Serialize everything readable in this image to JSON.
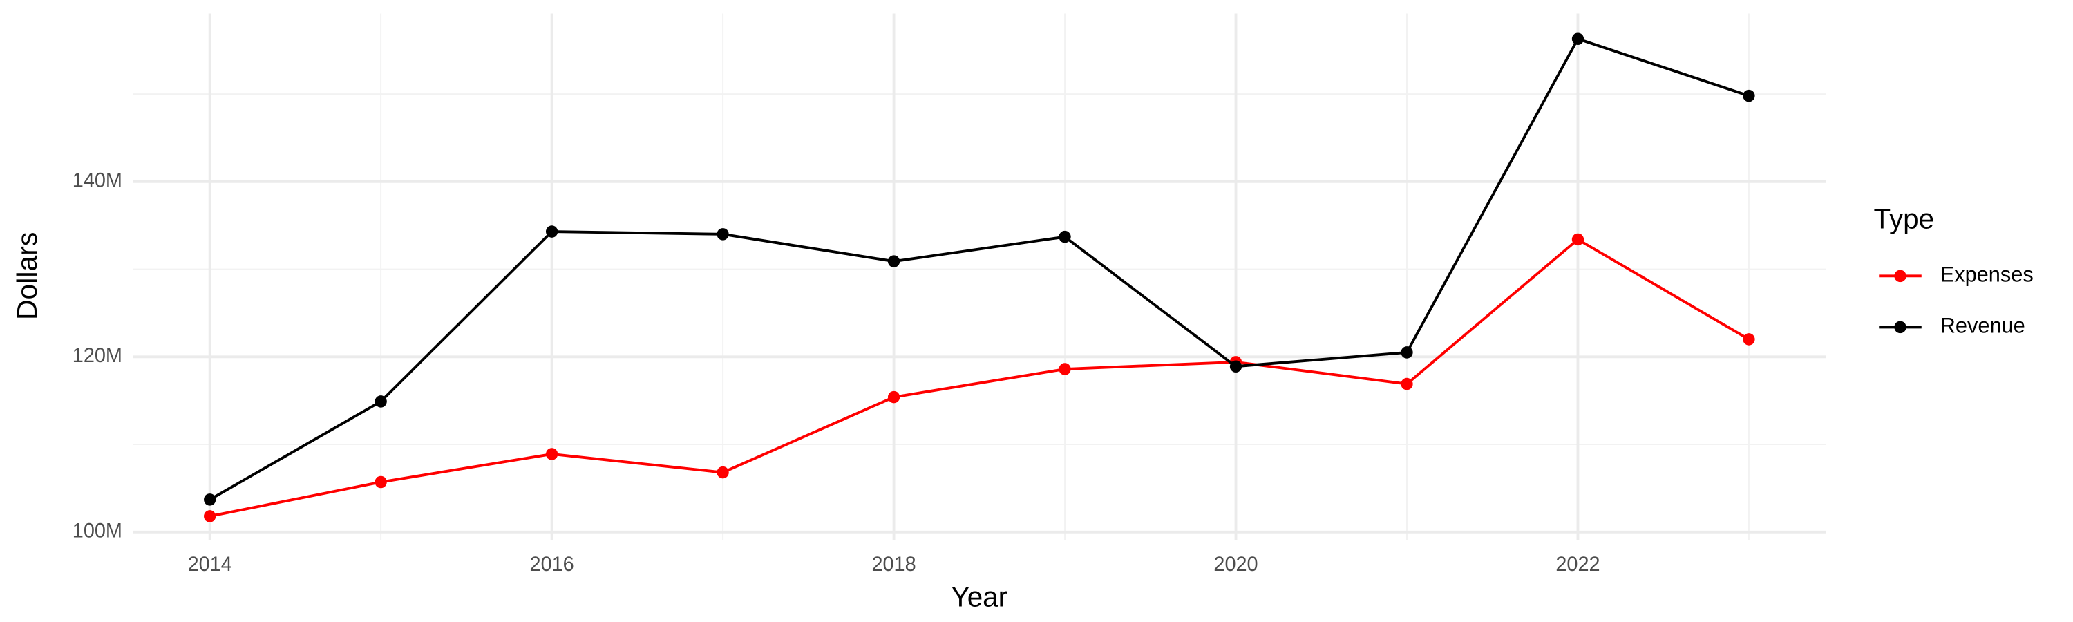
{
  "chart_data": {
    "type": "line",
    "x_label": "Year",
    "y_label": "Dollars",
    "legend_title": "Type",
    "x": [
      2014,
      2015,
      2016,
      2017,
      2018,
      2019,
      2020,
      2021,
      2022,
      2023
    ],
    "series": [
      {
        "name": "Expenses",
        "color": "#ff0000",
        "values": [
          101800000,
          105700000,
          108900000,
          106800000,
          115400000,
          118600000,
          119400000,
          116900000,
          133400000,
          122000000
        ]
      },
      {
        "name": "Revenue",
        "color": "#000000",
        "values": [
          103700000,
          114900000,
          134300000,
          134000000,
          130900000,
          133700000,
          118900000,
          120500000,
          156300000,
          149800000
        ]
      }
    ],
    "xlim": [
      2013.55,
      2023.45
    ],
    "xticks": [
      2014,
      2016,
      2018,
      2020,
      2022
    ],
    "xminor": [
      2015,
      2017,
      2019,
      2021,
      2023
    ],
    "ylim": [
      99100000,
      159200000
    ],
    "yticks": [
      {
        "value": 100000000,
        "label": "100M"
      },
      {
        "value": 120000000,
        "label": "120M"
      },
      {
        "value": 140000000,
        "label": "140M"
      }
    ],
    "yminor": [
      110000000,
      130000000,
      150000000
    ],
    "grid": true,
    "legend": "right"
  }
}
